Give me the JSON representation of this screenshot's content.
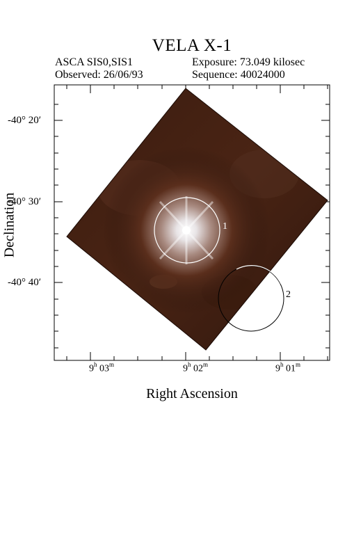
{
  "title": "VELA X-1",
  "header": {
    "instrument": "ASCA SIS0,SIS1",
    "exposure": "Exposure: 73.049 kilosec",
    "observed": "Observed: 26/06/93",
    "sequence": "Sequence: 40024000"
  },
  "axes": {
    "xlabel": "Right Ascension",
    "ylabel": "Declination",
    "yticks": [
      "-40° 20′",
      "-40° 30′",
      "-40° 40′"
    ],
    "xticks": [
      {
        "h": "9",
        "m": "03"
      },
      {
        "h": "9",
        "m": "02"
      },
      {
        "h": "9",
        "m": "01"
      }
    ]
  },
  "sources": [
    "1",
    "2"
  ],
  "colors": {
    "field_dark": "#2a140c",
    "field_mid": "#4a2414",
    "source_core": "#ffffff",
    "circle": "#ffffff"
  }
}
